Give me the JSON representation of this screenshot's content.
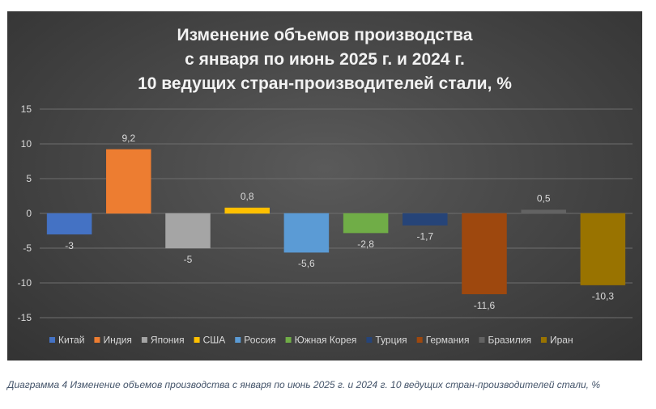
{
  "chart_data": {
    "type": "bar",
    "title_lines": [
      "Изменение объемов производства",
      "с января по июнь 2025 г. и 2024 г.",
      "10 ведущих стран-производителей стали, %"
    ],
    "categories": [
      "Китай",
      "Индия",
      "Япония",
      "США",
      "Россия",
      "Южная Корея",
      "Турция",
      "Германия",
      "Бразилия",
      "Иран"
    ],
    "values": [
      -3,
      9.2,
      -5,
      0.8,
      -5.6,
      -2.8,
      -1.7,
      -11.6,
      0.5,
      -10.3
    ],
    "value_labels": [
      "-3",
      "9,2",
      "-5",
      "0,8",
      "-5,6",
      "-2,8",
      "-1,7",
      "-11,6",
      "0,5",
      "-10,3"
    ],
    "colors": [
      "#4472c4",
      "#ed7d31",
      "#a5a5a5",
      "#ffc000",
      "#5b9bd5",
      "#70ad47",
      "#264478",
      "#9e480e",
      "#636363",
      "#997300"
    ],
    "ylim": [
      -15,
      15
    ],
    "yticks": [
      15,
      10,
      5,
      0,
      -5,
      -10,
      -15
    ],
    "ytick_labels": [
      "15",
      "10",
      "5",
      "0",
      "-5",
      "-10",
      "-15"
    ],
    "grid": true,
    "legend_position": "bottom"
  },
  "caption": "Диаграмма 4 Изменение объемов производства с января по июнь 2025 г. и 2024 г. 10 ведущих стран-производителей стали, %"
}
